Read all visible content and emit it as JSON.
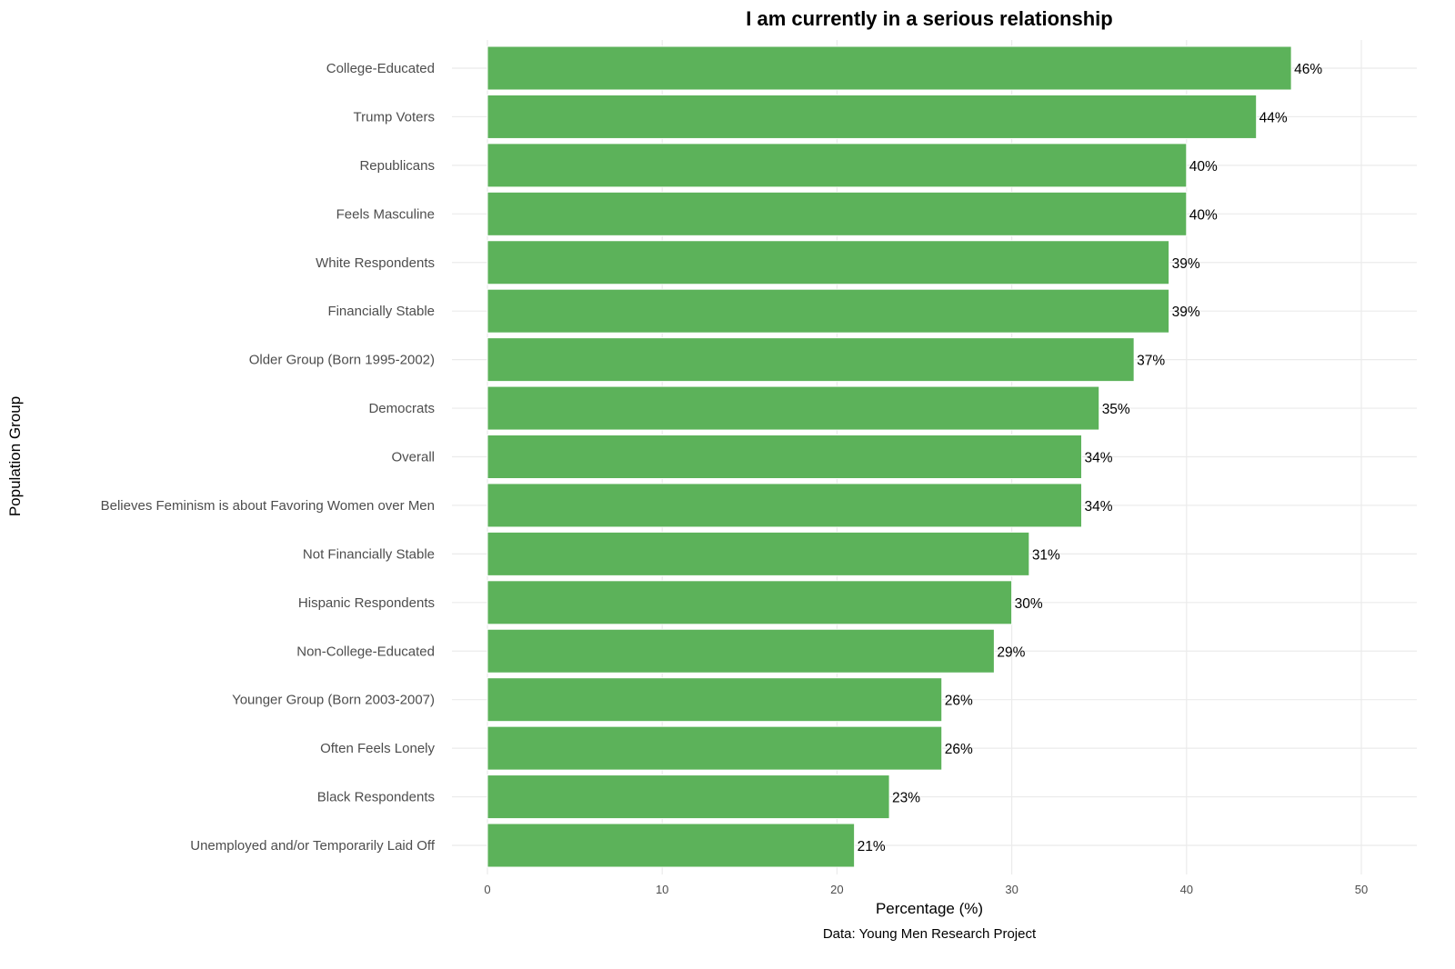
{
  "chart_data": {
    "type": "bar",
    "orientation": "horizontal",
    "title": "I am currently in a serious relationship",
    "xlabel": "Percentage (%)",
    "ylabel": "Population Group",
    "caption": "Data: Young Men Research Project",
    "xlim": [
      0,
      50
    ],
    "xticks": [
      0,
      10,
      20,
      30,
      40,
      50
    ],
    "grid": true,
    "bar_color": "#5cb25a",
    "categories": [
      "College-Educated",
      "Trump Voters",
      "Republicans",
      "Feels Masculine",
      "White Respondents",
      "Financially Stable",
      "Older Group (Born 1995-2002)",
      "Democrats",
      "Overall",
      "Believes Feminism is about Favoring Women over Men",
      "Not Financially Stable",
      "Hispanic Respondents",
      "Non-College-Educated",
      "Younger Group (Born 2003-2007)",
      "Often Feels Lonely",
      "Black Respondents",
      "Unemployed and/or Temporarily Laid Off"
    ],
    "values": [
      46,
      44,
      40,
      40,
      39,
      39,
      37,
      35,
      34,
      34,
      31,
      30,
      29,
      26,
      26,
      23,
      21
    ],
    "labels": [
      "46%",
      "44%",
      "40%",
      "40%",
      "39%",
      "39%",
      "37%",
      "35%",
      "34%",
      "34%",
      "31%",
      "30%",
      "29%",
      "26%",
      "26%",
      "23%",
      "21%"
    ]
  }
}
